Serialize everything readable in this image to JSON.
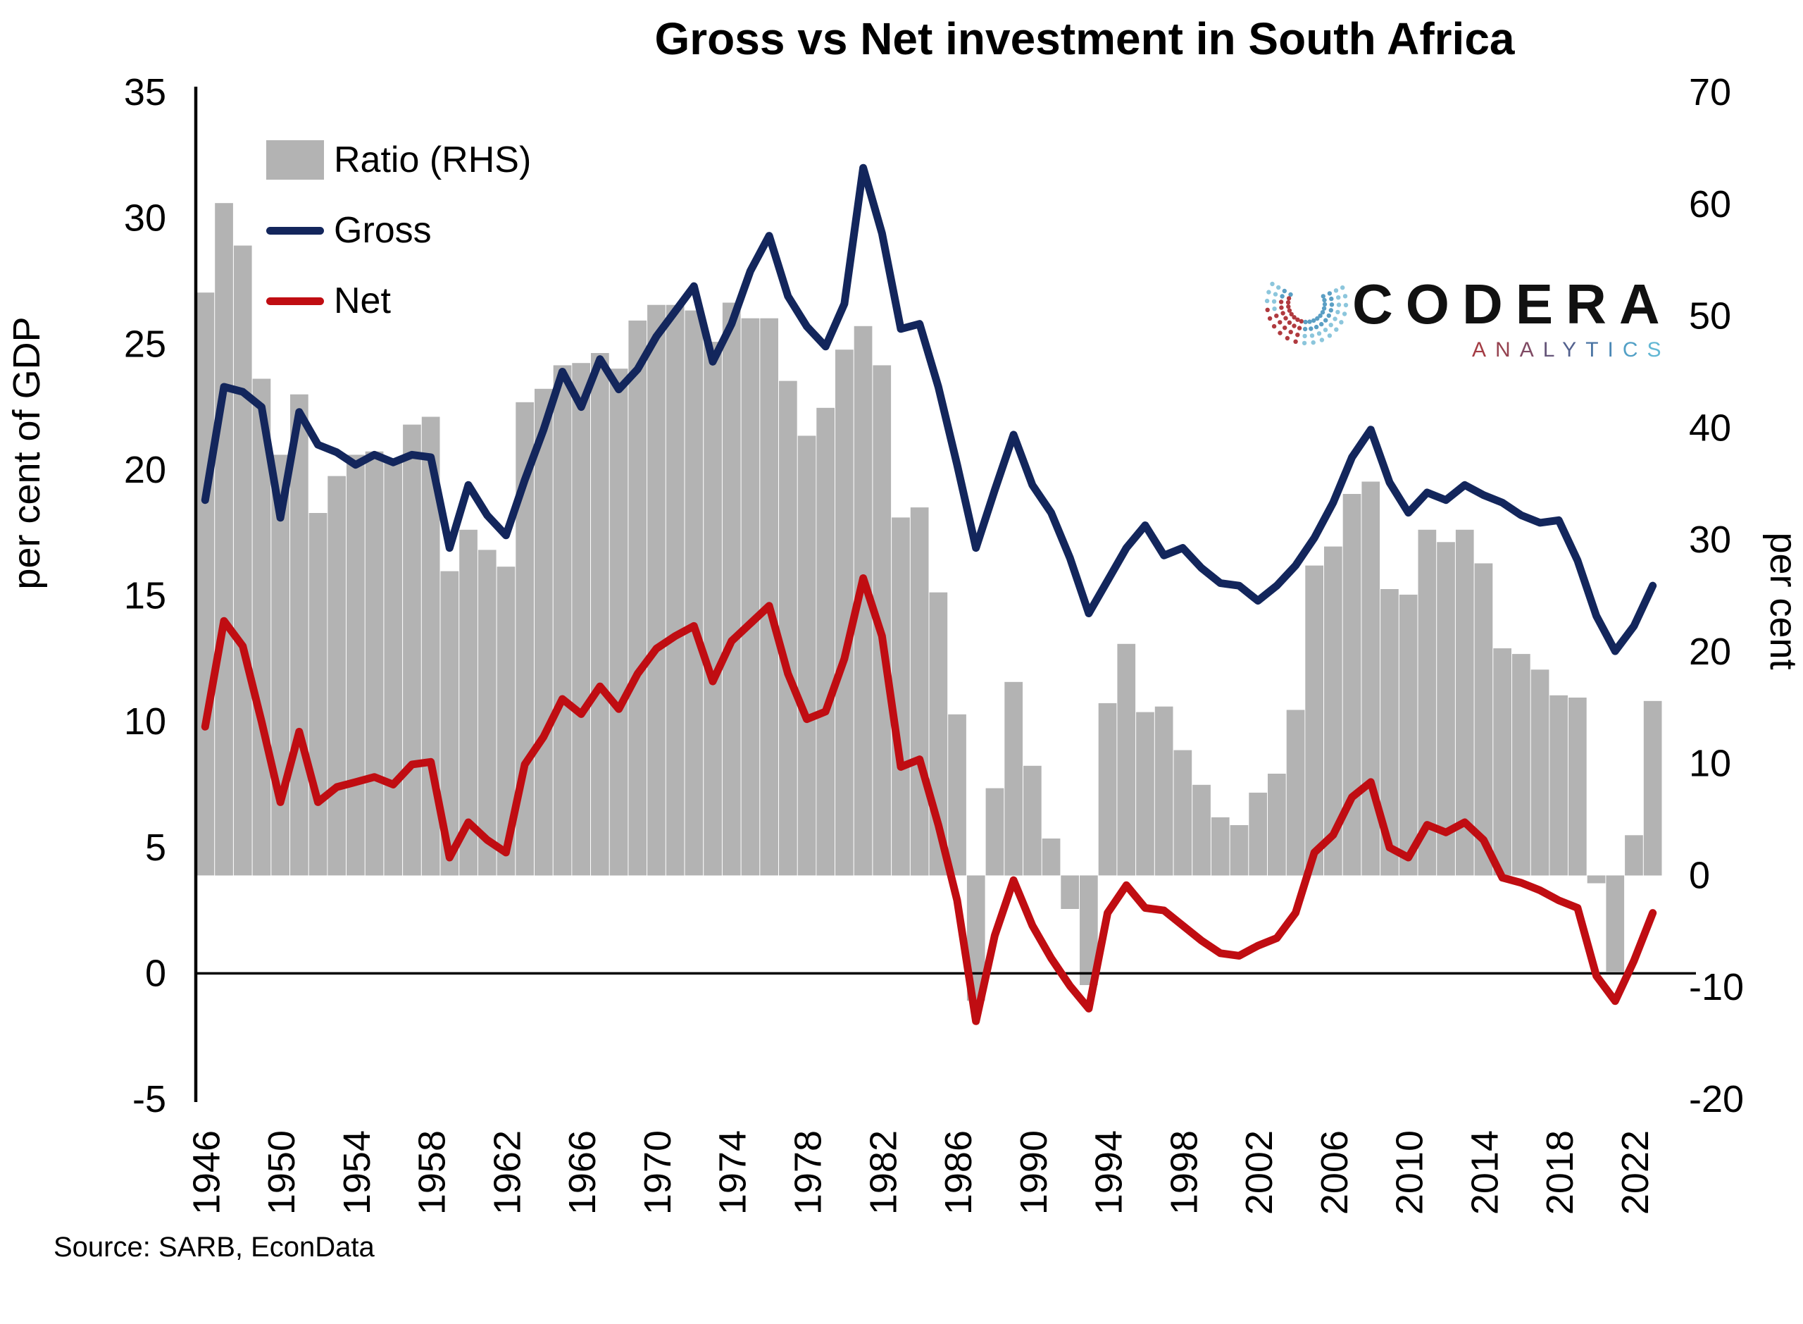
{
  "title": "Gross vs Net investment in South Africa",
  "source": "Source: SARB, EconData",
  "logo": {
    "name": "CODERA",
    "sub": "ANALYTICS",
    "sub_letter_colors": [
      "#a43c44",
      "#95424f",
      "#7f4a63",
      "#655579",
      "#53618e",
      "#4a74a3",
      "#4a87b5",
      "#52a0c6",
      "#62b7d4"
    ],
    "mark_red": "#b03a3f",
    "mark_blue": "#5b9fc4",
    "mark_light_blue": "#8cc6dc"
  },
  "legend": {
    "ratio": "Ratio (RHS)",
    "gross": "Gross",
    "net": "Net"
  },
  "chart_data": {
    "type": "bar+line",
    "title": "Gross vs Net investment in South Africa",
    "x": [
      1946,
      1947,
      1948,
      1949,
      1950,
      1951,
      1952,
      1953,
      1954,
      1955,
      1956,
      1957,
      1958,
      1959,
      1960,
      1961,
      1962,
      1963,
      1964,
      1965,
      1966,
      1967,
      1968,
      1969,
      1970,
      1971,
      1972,
      1973,
      1974,
      1975,
      1976,
      1977,
      1978,
      1979,
      1980,
      1981,
      1982,
      1983,
      1984,
      1985,
      1986,
      1987,
      1988,
      1989,
      1990,
      1991,
      1992,
      1993,
      1994,
      1995,
      1996,
      1997,
      1998,
      1999,
      2000,
      2001,
      2002,
      2003,
      2004,
      2005,
      2006,
      2007,
      2008,
      2009,
      2010,
      2011,
      2012,
      2013,
      2014,
      2015,
      2016,
      2017,
      2018,
      2019,
      2020,
      2021,
      2022,
      2023
    ],
    "series": [
      {
        "name": "Ratio (RHS)",
        "type": "bar",
        "axis": "right",
        "color": "#b3b3b3",
        "values": [
          52.1,
          60.1,
          56.3,
          44.4,
          37.6,
          43.0,
          32.4,
          35.7,
          37.6,
          37.9,
          36.9,
          40.3,
          41.0,
          27.2,
          30.9,
          29.1,
          27.6,
          42.3,
          43.5,
          45.6,
          45.8,
          46.7,
          45.3,
          49.6,
          51.0,
          51.0,
          50.5,
          47.7,
          51.2,
          49.8,
          49.8,
          44.2,
          39.3,
          41.8,
          47.0,
          49.1,
          45.6,
          32.0,
          32.9,
          25.3,
          14.4,
          -11.2,
          7.8,
          17.3,
          9.8,
          3.3,
          -3.0,
          -9.8,
          15.4,
          20.7,
          14.6,
          15.1,
          11.2,
          8.1,
          5.2,
          4.5,
          7.4,
          9.1,
          14.8,
          27.7,
          29.4,
          34.1,
          35.2,
          25.6,
          25.1,
          30.9,
          29.8,
          30.9,
          27.9,
          20.3,
          19.8,
          18.4,
          16.1,
          15.9,
          -0.7,
          -8.6,
          3.6,
          15.6
        ]
      },
      {
        "name": "Gross",
        "type": "line",
        "axis": "left",
        "color": "#13265c",
        "values": [
          18.8,
          23.3,
          23.1,
          22.5,
          18.1,
          22.3,
          21.0,
          20.7,
          20.2,
          20.6,
          20.3,
          20.6,
          20.5,
          16.9,
          19.4,
          18.2,
          17.4,
          19.6,
          21.6,
          23.9,
          22.5,
          24.4,
          23.2,
          24.0,
          25.3,
          26.3,
          27.3,
          24.3,
          25.8,
          27.9,
          29.3,
          26.9,
          25.7,
          24.9,
          26.6,
          32.0,
          29.4,
          25.6,
          25.8,
          23.3,
          20.2,
          16.9,
          19.2,
          21.4,
          19.4,
          18.3,
          16.5,
          14.3,
          15.6,
          16.9,
          17.8,
          16.6,
          16.9,
          16.1,
          15.5,
          15.4,
          14.8,
          15.4,
          16.2,
          17.3,
          18.7,
          20.5,
          21.6,
          19.5,
          18.3,
          19.1,
          18.8,
          19.4,
          19.0,
          18.7,
          18.2,
          17.9,
          18.0,
          16.4,
          14.2,
          12.8,
          13.8,
          15.4
        ]
      },
      {
        "name": "Net",
        "type": "line",
        "axis": "left",
        "color": "#c00d12",
        "values": [
          9.8,
          14.0,
          13.0,
          10.0,
          6.8,
          9.6,
          6.8,
          7.4,
          7.6,
          7.8,
          7.5,
          8.3,
          8.4,
          4.6,
          6.0,
          5.3,
          4.8,
          8.3,
          9.4,
          10.9,
          10.3,
          11.4,
          10.5,
          11.9,
          12.9,
          13.4,
          13.8,
          11.6,
          13.2,
          13.9,
          14.6,
          11.9,
          10.1,
          10.4,
          12.5,
          15.7,
          13.4,
          8.2,
          8.5,
          5.9,
          2.9,
          -1.9,
          1.5,
          3.7,
          1.9,
          0.6,
          -0.5,
          -1.4,
          2.4,
          3.5,
          2.6,
          2.5,
          1.9,
          1.3,
          0.8,
          0.7,
          1.1,
          1.4,
          2.4,
          4.8,
          5.5,
          7.0,
          7.6,
          5.0,
          4.6,
          5.9,
          5.6,
          6.0,
          5.3,
          3.8,
          3.6,
          3.3,
          2.9,
          2.6,
          -0.1,
          -1.1,
          0.5,
          2.4
        ]
      }
    ],
    "left_axis": {
      "label": "per cent of GDP",
      "min": -5,
      "max": 35,
      "ticks": [
        35,
        30,
        25,
        20,
        15,
        10,
        5,
        0,
        -5
      ]
    },
    "right_axis": {
      "label": "per cent",
      "min": -20,
      "max": 70,
      "ticks": [
        70,
        60,
        50,
        40,
        30,
        20,
        10,
        0,
        -10,
        -20
      ]
    },
    "x_ticks": [
      1946,
      1950,
      1954,
      1958,
      1962,
      1966,
      1970,
      1974,
      1978,
      1982,
      1986,
      1990,
      1994,
      1998,
      2002,
      2006,
      2010,
      2014,
      2018,
      2022
    ],
    "grid": false,
    "legend_position": "top-left",
    "zero_line": true
  }
}
